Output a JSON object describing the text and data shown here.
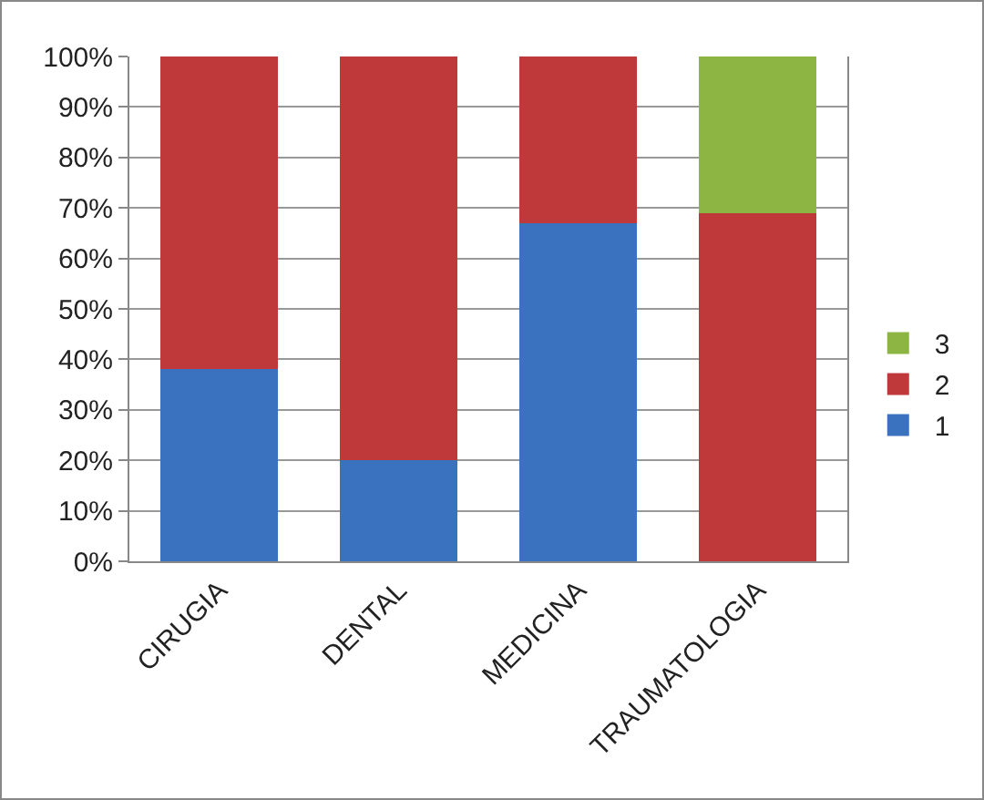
{
  "chart_data": {
    "type": "bar",
    "stacked": true,
    "categories": [
      "CIRUGIA",
      "DENTAL",
      "MEDICINA",
      "TRAUMATOLOGIA"
    ],
    "series": [
      {
        "name": "1",
        "color": "#3a72c0",
        "values": [
          38,
          20,
          67,
          0
        ]
      },
      {
        "name": "2",
        "color": "#c0393a",
        "values": [
          62,
          80,
          33,
          69
        ]
      },
      {
        "name": "3",
        "color": "#8db544",
        "values": [
          0,
          0,
          0,
          31
        ]
      }
    ],
    "ylim": [
      0,
      100
    ],
    "yticks": [
      {
        "value": 0,
        "label": "0%"
      },
      {
        "value": 10,
        "label": "10%"
      },
      {
        "value": 20,
        "label": "20%"
      },
      {
        "value": 30,
        "label": "30%"
      },
      {
        "value": 40,
        "label": "40%"
      },
      {
        "value": 50,
        "label": "50%"
      },
      {
        "value": 60,
        "label": "60%"
      },
      {
        "value": 70,
        "label": "70%"
      },
      {
        "value": 80,
        "label": "80%"
      },
      {
        "value": 90,
        "label": "90%"
      },
      {
        "value": 100,
        "label": "100%"
      }
    ],
    "grid": "y",
    "legend": "right"
  }
}
